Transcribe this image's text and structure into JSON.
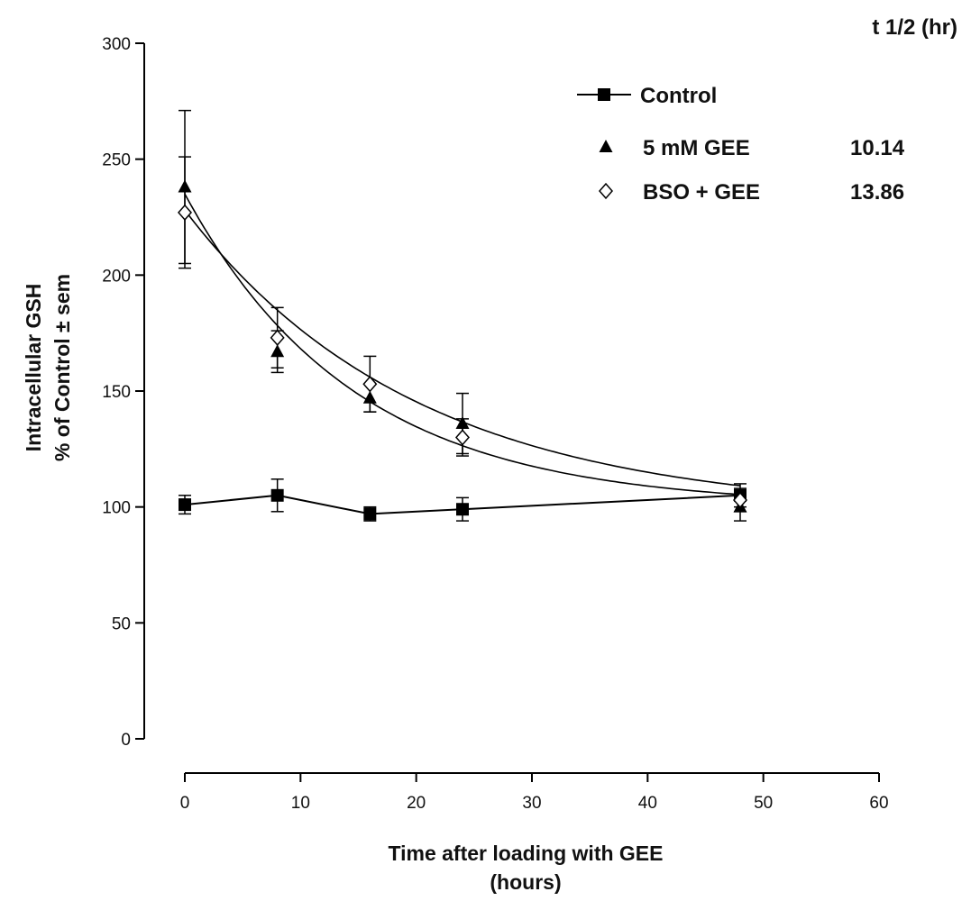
{
  "chart_data": {
    "type": "line",
    "xlabel": [
      "Time after loading with GEE",
      "(hours)"
    ],
    "ylabel": [
      "Intracellular GSH",
      "% of Control ± sem"
    ],
    "xlim": [
      0,
      60
    ],
    "ylim": [
      0,
      300
    ],
    "xticks": [
      0,
      10,
      20,
      30,
      40,
      50,
      60
    ],
    "yticks": [
      0,
      50,
      100,
      150,
      200,
      250,
      300
    ],
    "grid": false,
    "legend_position": "top-right",
    "legend_header": "t 1/2 (hr)",
    "series": [
      {
        "name": "Control",
        "marker": "square",
        "color": "#000000",
        "connected": true,
        "x": [
          0,
          8,
          16,
          24,
          48
        ],
        "y": [
          101,
          105,
          97,
          99,
          105
        ],
        "err": [
          4,
          7,
          3,
          5,
          5
        ]
      },
      {
        "name": "5 mM GEE",
        "half_life": "10.14",
        "marker": "triangle",
        "color": "#000000",
        "connected": false,
        "x": [
          0,
          8,
          16,
          24,
          48
        ],
        "y": [
          238,
          167,
          147,
          136,
          100
        ],
        "err": [
          33,
          9,
          6,
          13,
          6
        ],
        "fit": {
          "type": "exp-decay",
          "y0": 235,
          "plateau": 100.3,
          "half_life": 10.14
        }
      },
      {
        "name": "BSO + GEE",
        "half_life": "13.86",
        "marker": "diamond-open",
        "color": "#000000",
        "connected": false,
        "x": [
          0,
          8,
          16,
          24,
          48
        ],
        "y": [
          227,
          173,
          153,
          130,
          103
        ],
        "err": [
          24,
          13,
          12,
          8,
          5
        ],
        "fit": {
          "type": "exp-decay",
          "y0": 228,
          "plateau": 97.3,
          "half_life": 13.86
        }
      }
    ]
  }
}
